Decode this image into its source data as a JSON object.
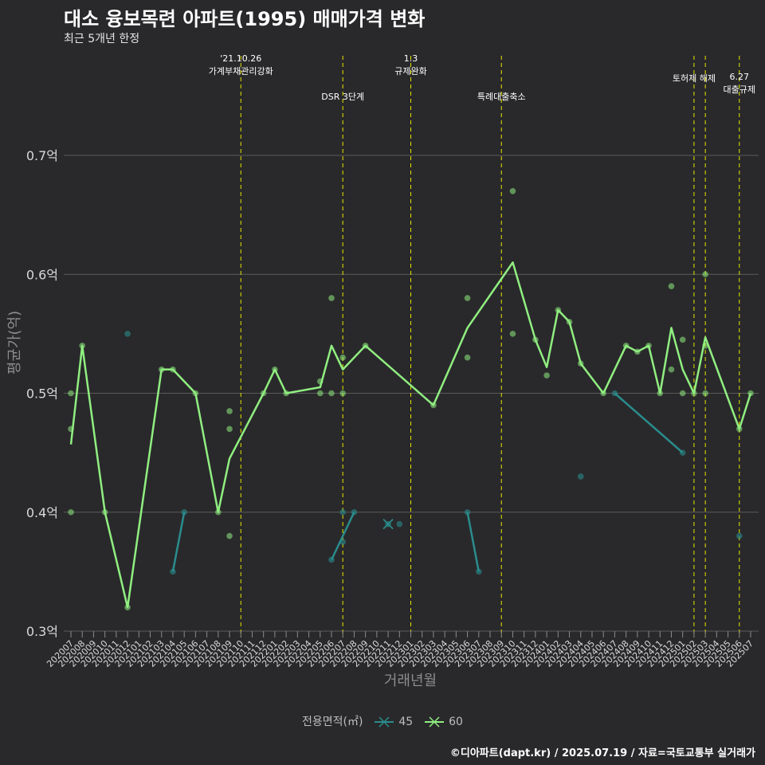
{
  "header": {
    "title": "대소 융보목련 아파트(1995) 매매가격 변화",
    "subtitle": "최근 5개년 한정"
  },
  "legend": {
    "title": "전용면적(㎡)",
    "items": [
      {
        "label": "45",
        "color": "#2a8c8c"
      },
      {
        "label": "60",
        "color": "#90ee80"
      }
    ]
  },
  "credit": "©디아파트(dapt.kr) / 2025.07.19 / 자료=국토교통부 실거래가",
  "colors": {
    "background": "#29292b",
    "grid": "#5a5a5a",
    "event_line": "#e5e500",
    "s45": "#2a8c8c",
    "s60": "#90ee80"
  },
  "chart_data": {
    "type": "line",
    "xlabel": "거래년월",
    "ylabel": "평균가(억)",
    "ylim": [
      0.3,
      0.7
    ],
    "yticks": [
      {
        "value": 0.3,
        "label": "0.3억"
      },
      {
        "value": 0.4,
        "label": "0.4억"
      },
      {
        "value": 0.5,
        "label": "0.5억"
      },
      {
        "value": 0.6,
        "label": "0.6억"
      },
      {
        "value": 0.7,
        "label": "0.7억"
      }
    ],
    "grid": true,
    "legend_position": "bottom",
    "categories": [
      "202007",
      "202008",
      "202009",
      "202010",
      "202011",
      "202012",
      "202101",
      "202102",
      "202103",
      "202104",
      "202105",
      "202106",
      "202107",
      "202108",
      "202109",
      "202110",
      "202111",
      "202112",
      "202201",
      "202202",
      "202203",
      "202204",
      "202205",
      "202206",
      "202207",
      "202208",
      "202209",
      "202210",
      "202211",
      "202212",
      "202301",
      "202302",
      "202303",
      "202304",
      "202305",
      "202306",
      "202307",
      "202308",
      "202309",
      "202310",
      "202311",
      "202312",
      "202401",
      "202402",
      "202403",
      "202404",
      "202405",
      "202406",
      "202407",
      "202408",
      "202409",
      "202410",
      "202411",
      "202412",
      "202501",
      "202502",
      "202503",
      "202504",
      "202505",
      "202506",
      "202507"
    ],
    "events": [
      {
        "x": "202110",
        "label": "'21.10.26\n가계부채관리강화",
        "row": 0
      },
      {
        "x": "202207",
        "label": "DSR 3단계",
        "row": 1
      },
      {
        "x": "202301",
        "label": "1.3\n규제완화",
        "row": 0
      },
      {
        "x": "202309",
        "label": "특례대출축소",
        "row": 1
      },
      {
        "x": "202502",
        "label": "토허제 해제",
        "row": 2
      },
      {
        "x": "202503",
        "label": "",
        "row": 0
      },
      {
        "x": "202506",
        "label": "6.27\n대출규제",
        "row": 3
      }
    ],
    "series": [
      {
        "name": "45",
        "color": "#2a8c8c",
        "line_segments": [
          [
            [
              "202104",
              0.35
            ],
            [
              "202105",
              0.4
            ]
          ],
          [
            [
              "202206",
              0.36
            ],
            [
              "202207",
              0.38
            ],
            [
              "202208",
              0.4
            ]
          ],
          [
            [
              "202306",
              0.4
            ],
            [
              "202307",
              0.35
            ]
          ],
          [
            [
              "202407",
              0.5
            ],
            [
              "202501",
              0.45
            ]
          ]
        ],
        "points": [
          [
            "202012",
            0.55
          ],
          [
            "202104",
            0.35
          ],
          [
            "202105",
            0.4
          ],
          [
            "202206",
            0.36
          ],
          [
            "202207",
            0.375
          ],
          [
            "202207",
            0.4
          ],
          [
            "202208",
            0.4
          ],
          [
            "202211",
            0.39
          ],
          [
            "202212",
            0.39
          ],
          [
            "202306",
            0.4
          ],
          [
            "202307",
            0.35
          ],
          [
            "202404",
            0.43
          ],
          [
            "202407",
            0.5
          ],
          [
            "202501",
            0.45
          ],
          [
            "202506",
            0.38
          ]
        ]
      },
      {
        "name": "60",
        "color": "#90ee80",
        "line": [
          [
            "202007",
            0.457
          ],
          [
            "202008",
            0.54
          ],
          [
            "202010",
            0.4
          ],
          [
            "202012",
            0.32
          ],
          [
            "202103",
            0.52
          ],
          [
            "202104",
            0.52
          ],
          [
            "202106",
            0.5
          ],
          [
            "202108",
            0.4
          ],
          [
            "202109",
            0.445
          ],
          [
            "202112",
            0.5
          ],
          [
            "202201",
            0.52
          ],
          [
            "202202",
            0.5
          ],
          [
            "202205",
            0.505
          ],
          [
            "202206",
            0.54
          ],
          [
            "202207",
            0.52
          ],
          [
            "202209",
            0.54
          ],
          [
            "202303",
            0.49
          ],
          [
            "202306",
            0.555
          ],
          [
            "202310",
            0.61
          ],
          [
            "202312",
            0.545
          ],
          [
            "202401",
            0.522
          ],
          [
            "202402",
            0.57
          ],
          [
            "202403",
            0.56
          ],
          [
            "202404",
            0.525
          ],
          [
            "202406",
            0.5
          ],
          [
            "202408",
            0.54
          ],
          [
            "202409",
            0.535
          ],
          [
            "202410",
            0.54
          ],
          [
            "202411",
            0.5
          ],
          [
            "202412",
            0.555
          ],
          [
            "202501",
            0.52
          ],
          [
            "202502",
            0.5
          ],
          [
            "202503",
            0.547
          ],
          [
            "202506",
            0.47
          ],
          [
            "202507",
            0.5
          ]
        ],
        "points": [
          [
            "202007",
            0.5
          ],
          [
            "202007",
            0.47
          ],
          [
            "202007",
            0.4
          ],
          [
            "202008",
            0.54
          ],
          [
            "202010",
            0.4
          ],
          [
            "202012",
            0.32
          ],
          [
            "202103",
            0.52
          ],
          [
            "202104",
            0.52
          ],
          [
            "202106",
            0.5
          ],
          [
            "202108",
            0.4
          ],
          [
            "202109",
            0.485
          ],
          [
            "202109",
            0.47
          ],
          [
            "202109",
            0.38
          ],
          [
            "202112",
            0.5
          ],
          [
            "202201",
            0.52
          ],
          [
            "202202",
            0.5
          ],
          [
            "202205",
            0.51
          ],
          [
            "202205",
            0.5
          ],
          [
            "202206",
            0.58
          ],
          [
            "202206",
            0.5
          ],
          [
            "202207",
            0.53
          ],
          [
            "202207",
            0.5
          ],
          [
            "202209",
            0.54
          ],
          [
            "202303",
            0.49
          ],
          [
            "202306",
            0.58
          ],
          [
            "202306",
            0.53
          ],
          [
            "202310",
            0.67
          ],
          [
            "202310",
            0.55
          ],
          [
            "202312",
            0.545
          ],
          [
            "202401",
            0.515
          ],
          [
            "202402",
            0.57
          ],
          [
            "202403",
            0.56
          ],
          [
            "202404",
            0.525
          ],
          [
            "202406",
            0.5
          ],
          [
            "202408",
            0.54
          ],
          [
            "202409",
            0.535
          ],
          [
            "202410",
            0.54
          ],
          [
            "202411",
            0.5
          ],
          [
            "202412",
            0.59
          ],
          [
            "202412",
            0.52
          ],
          [
            "202501",
            0.545
          ],
          [
            "202501",
            0.5
          ],
          [
            "202502",
            0.5
          ],
          [
            "202503",
            0.6
          ],
          [
            "202503",
            0.54
          ],
          [
            "202503",
            0.5
          ],
          [
            "202506",
            0.47
          ],
          [
            "202507",
            0.5
          ]
        ]
      }
    ]
  }
}
